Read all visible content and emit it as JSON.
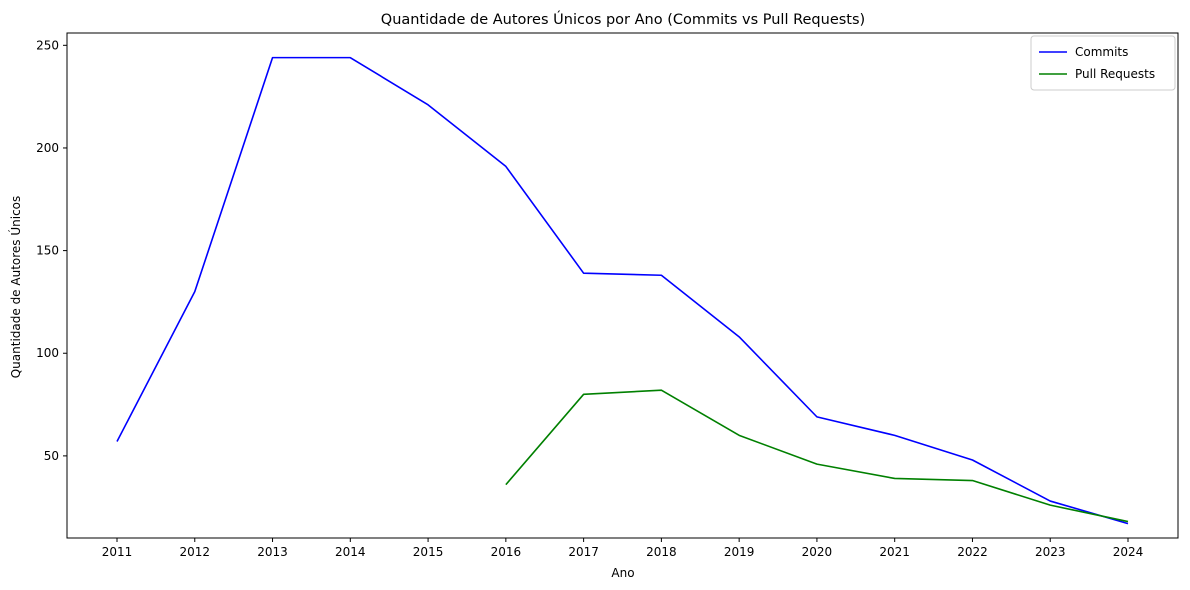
{
  "chart_data": {
    "type": "line",
    "title": "Quantidade de Autores Únicos por Ano (Commits vs Pull Requests)",
    "xlabel": "Ano",
    "ylabel": "Quantidade de Autores Únicos",
    "categories": [
      "2011",
      "2012",
      "2013",
      "2014",
      "2015",
      "2016",
      "2017",
      "2018",
      "2019",
      "2020",
      "2021",
      "2022",
      "2023",
      "2024"
    ],
    "yticks": [
      50,
      100,
      150,
      200,
      250
    ],
    "ylim": [
      10,
      256
    ],
    "grid": false,
    "legend_position": "top-right",
    "series": [
      {
        "name": "Commits",
        "color": "#0000ff",
        "values": [
          57,
          130,
          244,
          244,
          221,
          191,
          139,
          138,
          108,
          69,
          60,
          48,
          28,
          17
        ]
      },
      {
        "name": "Pull Requests",
        "color": "#008000",
        "values": [
          null,
          null,
          null,
          null,
          null,
          36,
          80,
          82,
          60,
          46,
          39,
          38,
          26,
          18
        ]
      }
    ]
  }
}
